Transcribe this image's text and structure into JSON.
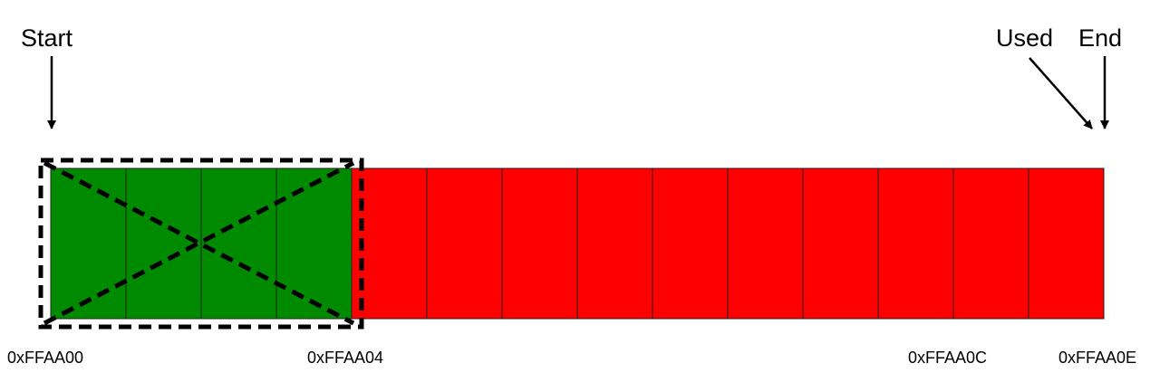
{
  "labels": {
    "start": "Start",
    "used": "Used",
    "end": "End"
  },
  "addresses": [
    "0xFFAA00",
    "0xFFAA04",
    "0xFFAA0C",
    "0xFFAA0E"
  ],
  "cells": [
    {
      "state": "green"
    },
    {
      "state": "green"
    },
    {
      "state": "green"
    },
    {
      "state": "green"
    },
    {
      "state": "red"
    },
    {
      "state": "red"
    },
    {
      "state": "red"
    },
    {
      "state": "red"
    },
    {
      "state": "red"
    },
    {
      "state": "red"
    },
    {
      "state": "red"
    },
    {
      "state": "red"
    },
    {
      "state": "red"
    },
    {
      "state": "red"
    }
  ],
  "colors": {
    "green": "#008a00",
    "red": "#ff0000",
    "stroke": "#222222",
    "ink": "#000000"
  }
}
